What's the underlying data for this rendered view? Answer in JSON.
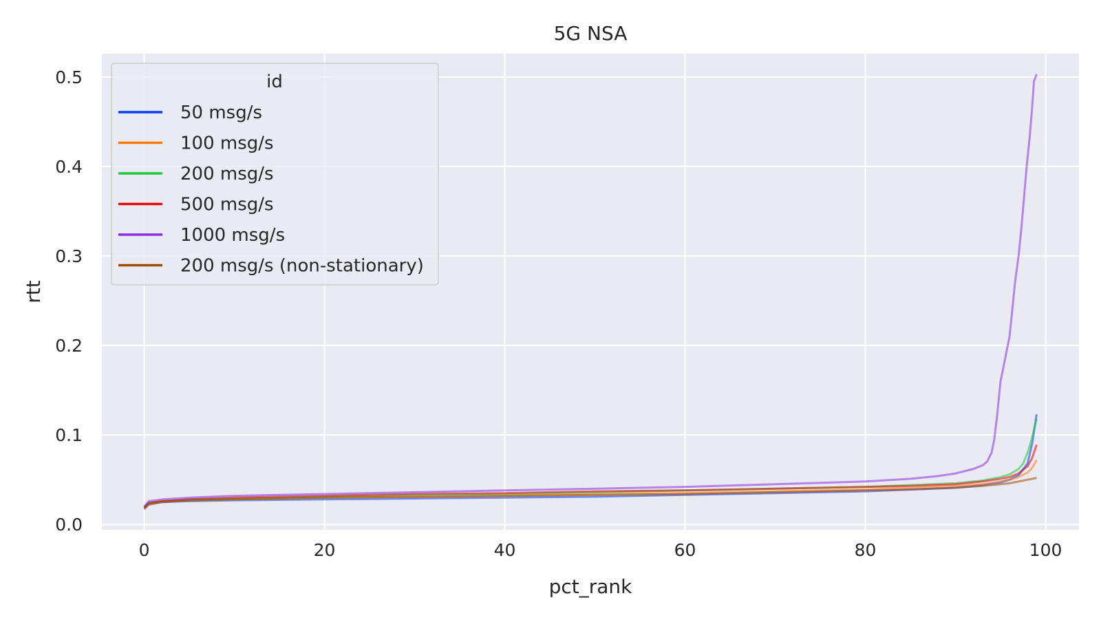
{
  "chart_data": {
    "type": "line",
    "title": "5G NSA",
    "xlabel": "pct_rank",
    "ylabel": "rtt",
    "xlim": [
      -4.7,
      103.7
    ],
    "ylim": [
      -0.006,
      0.526
    ],
    "xticks": [
      0,
      20,
      40,
      60,
      80,
      100
    ],
    "yticks": [
      0.0,
      0.1,
      0.2,
      0.3,
      0.4,
      0.5
    ],
    "xtick_labels": [
      "0",
      "20",
      "40",
      "60",
      "80",
      "100"
    ],
    "ytick_labels": [
      "0.0",
      "0.1",
      "0.2",
      "0.3",
      "0.4",
      "0.5"
    ],
    "grid": true,
    "background": "#eaeaf2",
    "legend": {
      "title": "id",
      "placement": "top-left"
    },
    "series": [
      {
        "name": "50 msg/s",
        "color": "#023eff",
        "x": [
          0,
          0.5,
          2,
          5,
          10,
          20,
          30,
          40,
          50,
          60,
          70,
          80,
          85,
          90,
          93,
          95,
          96,
          97,
          98,
          98.5,
          99
        ],
        "y": [
          0.018,
          0.023,
          0.025,
          0.026,
          0.027,
          0.028,
          0.029,
          0.03,
          0.031,
          0.033,
          0.035,
          0.037,
          0.039,
          0.041,
          0.044,
          0.047,
          0.05,
          0.055,
          0.068,
          0.09,
          0.123
        ]
      },
      {
        "name": "100 msg/s",
        "color": "#ff7c00",
        "x": [
          0,
          0.5,
          2,
          5,
          10,
          20,
          30,
          40,
          50,
          60,
          70,
          80,
          85,
          90,
          93,
          95,
          96,
          97,
          98,
          98.5,
          99
        ],
        "y": [
          0.019,
          0.024,
          0.026,
          0.027,
          0.028,
          0.03,
          0.031,
          0.032,
          0.034,
          0.035,
          0.037,
          0.039,
          0.041,
          0.043,
          0.045,
          0.048,
          0.05,
          0.053,
          0.058,
          0.063,
          0.072
        ]
      },
      {
        "name": "200 msg/s",
        "color": "#1ac938",
        "x": [
          0,
          0.5,
          2,
          5,
          10,
          20,
          30,
          40,
          50,
          60,
          70,
          80,
          85,
          90,
          93,
          95,
          96,
          97,
          97.5,
          98,
          98.5,
          99
        ],
        "y": [
          0.019,
          0.024,
          0.026,
          0.028,
          0.029,
          0.031,
          0.033,
          0.034,
          0.036,
          0.038,
          0.04,
          0.042,
          0.044,
          0.046,
          0.049,
          0.053,
          0.056,
          0.062,
          0.068,
          0.08,
          0.097,
          0.118
        ]
      },
      {
        "name": "500 msg/s",
        "color": "#e8000b",
        "x": [
          0,
          0.5,
          2,
          5,
          10,
          20,
          30,
          40,
          50,
          60,
          70,
          80,
          85,
          90,
          93,
          95,
          96,
          97,
          98,
          98.5,
          99
        ],
        "y": [
          0.019,
          0.024,
          0.026,
          0.028,
          0.03,
          0.032,
          0.034,
          0.035,
          0.037,
          0.038,
          0.04,
          0.042,
          0.043,
          0.045,
          0.048,
          0.051,
          0.053,
          0.057,
          0.065,
          0.074,
          0.089
        ]
      },
      {
        "name": "1000 msg/s",
        "color": "#8b2be2",
        "x": [
          0,
          0.5,
          2,
          5,
          10,
          20,
          30,
          40,
          50,
          60,
          70,
          80,
          85,
          88,
          90,
          92,
          93,
          93.5,
          94,
          94.3,
          94.6,
          95,
          95.3,
          95.6,
          96,
          96.3,
          96.6,
          97,
          97.3,
          97.6,
          97.9,
          98.2,
          98.5,
          98.7,
          99
        ],
        "y": [
          0.02,
          0.026,
          0.028,
          0.03,
          0.032,
          0.034,
          0.036,
          0.038,
          0.04,
          0.042,
          0.045,
          0.048,
          0.051,
          0.054,
          0.057,
          0.062,
          0.066,
          0.07,
          0.08,
          0.095,
          0.12,
          0.16,
          0.175,
          0.19,
          0.21,
          0.24,
          0.27,
          0.3,
          0.33,
          0.365,
          0.4,
          0.43,
          0.465,
          0.495,
          0.503
        ]
      },
      {
        "name": "200 msg/s (non-stationary)",
        "color": "#9f4800",
        "x": [
          0,
          0.5,
          2,
          5,
          10,
          20,
          30,
          40,
          50,
          60,
          70,
          80,
          85,
          90,
          93,
          95,
          96,
          97,
          98,
          99
        ],
        "y": [
          0.017,
          0.022,
          0.025,
          0.027,
          0.028,
          0.03,
          0.031,
          0.032,
          0.033,
          0.034,
          0.036,
          0.038,
          0.039,
          0.041,
          0.043,
          0.045,
          0.046,
          0.048,
          0.05,
          0.052
        ]
      }
    ]
  }
}
